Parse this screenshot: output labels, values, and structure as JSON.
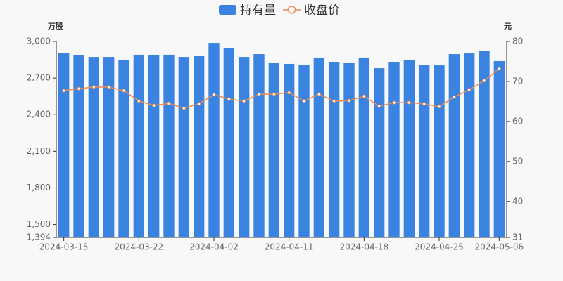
{
  "chart_data": {
    "type": "bar",
    "legend": "top",
    "y_unit": "万股",
    "y2_unit": "元",
    "categories": [
      "2024-03-15",
      null,
      null,
      null,
      null,
      "2024-03-22",
      null,
      null,
      null,
      null,
      "2024-04-02",
      null,
      null,
      null,
      null,
      "2024-04-11",
      null,
      null,
      null,
      null,
      "2024-04-18",
      null,
      null,
      null,
      null,
      "2024-04-25",
      null,
      null,
      null,
      "2024-05-06"
    ],
    "series": [
      {
        "name": "持有量",
        "type": "bar",
        "color": "#3b83e0",
        "values": [
          2902,
          2885,
          2873,
          2873,
          2850,
          2891,
          2885,
          2891,
          2873,
          2879,
          2988,
          2948,
          2873,
          2896,
          2827,
          2816,
          2810,
          2868,
          2833,
          2822,
          2868,
          2781,
          2833,
          2850,
          2810,
          2804,
          2896,
          2902,
          2925,
          2839
        ]
      },
      {
        "name": "收盘价",
        "type": "line",
        "axis": "y2",
        "color": "#ee8a4f",
        "values": [
          67.7,
          68.2,
          68.6,
          68.6,
          67.7,
          65.1,
          64.0,
          64.5,
          63.3,
          64.4,
          66.7,
          65.6,
          65.1,
          66.8,
          66.8,
          67.2,
          65.1,
          66.8,
          65.1,
          65.2,
          66.3,
          63.8,
          64.7,
          64.7,
          64.4,
          63.7,
          66.1,
          67.9,
          70.2,
          73.2
        ]
      }
    ],
    "ylim": [
      1394,
      3000
    ],
    "yticks": [
      {
        "value": 1394,
        "label": "1,394"
      },
      {
        "value": 1500,
        "label": "1,500"
      },
      {
        "value": 1800,
        "label": "1,800"
      },
      {
        "value": 2100,
        "label": "2,100"
      },
      {
        "value": 2400,
        "label": "2,400"
      },
      {
        "value": 2700,
        "label": "2,700"
      },
      {
        "value": 3000,
        "label": "3,000"
      }
    ],
    "y2lim": [
      31,
      80
    ],
    "y2ticks": [
      31,
      40,
      50,
      60,
      70,
      80
    ],
    "grid": false
  }
}
